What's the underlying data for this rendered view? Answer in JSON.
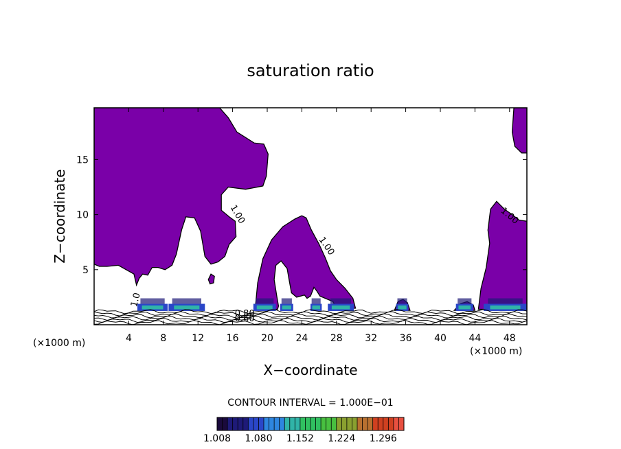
{
  "chart_data": {
    "type": "contour",
    "title": "saturation ratio",
    "xlabel": "X−coordinate",
    "ylabel": "Z−coordinate",
    "x_unit_left": "(×1000 m)",
    "x_unit_right": "(×1000 m)",
    "xlim": [
      0,
      50
    ],
    "ylim": [
      0,
      19.7
    ],
    "x_ticks": [
      4,
      8,
      12,
      16,
      20,
      24,
      28,
      32,
      36,
      40,
      44,
      48
    ],
    "y_ticks": [
      5,
      10,
      15
    ],
    "contour_interval_text": "CONTOUR INTERVAL = 1.000E−01",
    "contour_labels": [
      {
        "text": "1.00",
        "x": 16.3,
        "z": 9.9,
        "angle": 60
      },
      {
        "text": "1.00",
        "x": 26.6,
        "z": 7.0,
        "angle": 55
      },
      {
        "text": "1.00",
        "x": 47.8,
        "z": 9.7,
        "angle": 40
      },
      {
        "text": "0.80",
        "x": 17.4,
        "z": 0.75,
        "angle": 0
      },
      {
        "text": "0.60",
        "x": 17.4,
        "z": 0.3,
        "angle": 0
      },
      {
        "text": "1.0",
        "x": 5.1,
        "z": 2.2,
        "angle": -75
      }
    ],
    "colorbar": {
      "min": 1.008,
      "max": 1.332,
      "tick_labels": [
        "1.008",
        "1.080",
        "1.152",
        "1.224",
        "1.296"
      ],
      "colors": [
        "#1a0a3c",
        "#1e1a78",
        "#2a46c8",
        "#2e86e0",
        "#30b4a8",
        "#30c060",
        "#48c040",
        "#8aa030",
        "#b87030",
        "#d04020",
        "#e85040"
      ]
    },
    "fill_color": "#7a00a8",
    "supersaturated_regions": [
      {
        "name": "left plume",
        "points": [
          [
            0,
            19.7
          ],
          [
            14.5,
            19.7
          ],
          [
            15.5,
            18.8
          ],
          [
            16.5,
            17.5
          ],
          [
            18.5,
            16.5
          ],
          [
            19.6,
            16.4
          ],
          [
            20.1,
            15.5
          ],
          [
            19.9,
            13.5
          ],
          [
            19.5,
            12.6
          ],
          [
            17.5,
            12.3
          ],
          [
            15.5,
            12.5
          ],
          [
            14.7,
            11.8
          ],
          [
            14.7,
            10.4
          ],
          [
            15.6,
            9.8
          ],
          [
            16.3,
            9.4
          ],
          [
            16.4,
            8.0
          ],
          [
            15.6,
            7.3
          ],
          [
            15.1,
            6.2
          ],
          [
            14.3,
            5.7
          ],
          [
            13.5,
            5.5
          ],
          [
            12.8,
            6.2
          ],
          [
            12.3,
            8.5
          ],
          [
            11.6,
            9.7
          ],
          [
            10.6,
            9.8
          ],
          [
            10.1,
            8.6
          ],
          [
            9.5,
            6.4
          ],
          [
            9.0,
            5.4
          ],
          [
            8.2,
            5.0
          ],
          [
            7.4,
            5.2
          ],
          [
            6.7,
            5.2
          ],
          [
            6.2,
            4.5
          ],
          [
            5.6,
            4.6
          ],
          [
            5.2,
            4.2
          ],
          [
            4.9,
            3.6
          ],
          [
            4.6,
            4.6
          ],
          [
            2.8,
            5.4
          ],
          [
            1.5,
            5.3
          ],
          [
            0.6,
            5.3
          ],
          [
            0,
            5.5
          ]
        ]
      },
      {
        "name": "central plume",
        "points": [
          [
            18.6,
            1.4
          ],
          [
            18.9,
            3.8
          ],
          [
            19.5,
            6.0
          ],
          [
            20.5,
            7.7
          ],
          [
            21.8,
            8.9
          ],
          [
            23.2,
            9.6
          ],
          [
            24.0,
            9.9
          ],
          [
            24.5,
            9.7
          ],
          [
            25.1,
            8.6
          ],
          [
            26.0,
            7.3
          ],
          [
            26.7,
            6.1
          ],
          [
            27.3,
            4.9
          ],
          [
            28.0,
            4.1
          ],
          [
            29.0,
            3.3
          ],
          [
            29.9,
            2.4
          ],
          [
            30.2,
            1.5
          ],
          [
            28.0,
            1.4
          ],
          [
            27.6,
            2.1
          ],
          [
            26.7,
            2.4
          ],
          [
            26.1,
            2.6
          ],
          [
            25.7,
            3.1
          ],
          [
            25.4,
            3.4
          ],
          [
            25.0,
            2.6
          ],
          [
            24.6,
            2.4
          ],
          [
            24.3,
            2.7
          ],
          [
            23.4,
            2.5
          ],
          [
            22.8,
            2.9
          ],
          [
            22.5,
            4.2
          ],
          [
            22.3,
            5.1
          ],
          [
            21.6,
            5.8
          ],
          [
            21.0,
            5.4
          ],
          [
            20.8,
            4.1
          ],
          [
            21.1,
            2.6
          ],
          [
            21.3,
            1.7
          ],
          [
            21.2,
            1.4
          ]
        ]
      },
      {
        "name": "right plume",
        "points": [
          [
            44.4,
            1.4
          ],
          [
            44.7,
            3.3
          ],
          [
            45.3,
            5.2
          ],
          [
            45.7,
            7.4
          ],
          [
            45.5,
            8.6
          ],
          [
            45.8,
            10.5
          ],
          [
            46.5,
            11.2
          ],
          [
            47.4,
            10.5
          ],
          [
            48.3,
            10.0
          ],
          [
            49.1,
            9.5
          ],
          [
            50,
            9.4
          ],
          [
            50,
            1.4
          ]
        ]
      },
      {
        "name": "top-right corner",
        "points": [
          [
            48.5,
            19.7
          ],
          [
            50,
            19.7
          ],
          [
            50,
            15.6
          ],
          [
            49.4,
            15.6
          ],
          [
            48.6,
            16.2
          ],
          [
            48.3,
            17.5
          ]
        ]
      },
      {
        "name": "blob 13.5km",
        "points": [
          [
            13.2,
            4.1
          ],
          [
            13.5,
            4.6
          ],
          [
            13.9,
            4.4
          ],
          [
            13.8,
            3.8
          ],
          [
            13.4,
            3.7
          ]
        ]
      },
      {
        "name": "blob 35.8km",
        "points": [
          [
            34.7,
            1.3
          ],
          [
            35.1,
            2.1
          ],
          [
            35.7,
            2.3
          ],
          [
            36.2,
            2.0
          ],
          [
            36.5,
            1.3
          ]
        ]
      },
      {
        "name": "blob 42.5km",
        "points": [
          [
            41.6,
            1.3
          ],
          [
            42.3,
            1.9
          ],
          [
            43.1,
            2.1
          ],
          [
            43.8,
            1.8
          ],
          [
            44.0,
            1.3
          ]
        ]
      }
    ]
  }
}
